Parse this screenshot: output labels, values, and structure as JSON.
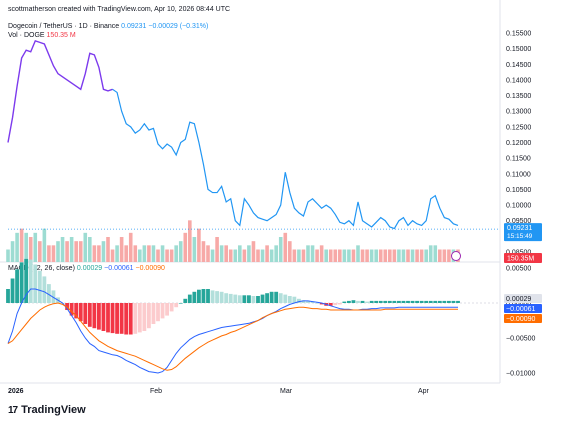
{
  "header": {
    "author_line": "scottmatherson created with TradingView.com, Apr 10, 2026 08:44 UTC"
  },
  "symbol": {
    "name": "Dogecoin / TetherUS · 1D · Binance",
    "price": "0.09231",
    "change": "−0.00029 (−0.31%)"
  },
  "volume": {
    "label": "Vol · DOGE",
    "value": "150.35 M"
  },
  "macd": {
    "label": "MACD (12, 26, close)",
    "hist": "0.00029",
    "macd": "−0.00061",
    "signal": "−0.00090"
  },
  "price_axis": {
    "ticks": [
      "0.15500",
      "0.15000",
      "0.14500",
      "0.14000",
      "0.13500",
      "0.13000",
      "0.12500",
      "0.12000",
      "0.11500",
      "0.11000",
      "0.10500",
      "0.10000",
      "0.09500",
      "0.09000",
      "0.08500"
    ],
    "current_price": "0.09231",
    "countdown": "15:15:49",
    "volume_tag": "150.35M"
  },
  "macd_axis": {
    "ticks": [
      "0.00500",
      "0.00000",
      "−0.00500",
      "−0.01000"
    ],
    "tags": [
      "0.00029",
      "−0.00061",
      "−0.00090"
    ]
  },
  "time_axis": {
    "labels": [
      "2026",
      "Feb",
      "Mar",
      "Apr"
    ]
  },
  "colors": {
    "line": "#2196f3",
    "line_early": "#7c3aed",
    "up": "#26a69a",
    "down": "#f23645",
    "macd": "#2962ff",
    "signal": "#ff6d00"
  },
  "brand": "TradingView",
  "chart_data": [
    {
      "type": "line",
      "title": "Dogecoin / TetherUS · 1D · Binance",
      "x": [
        "Jan 1",
        "Jan 2",
        "Jan 3",
        "Jan 4",
        "Jan 5",
        "Jan 6",
        "Jan 7",
        "Jan 8",
        "Jan 9",
        "Jan 10",
        "Jan 11",
        "Jan 12",
        "Jan 13",
        "Jan 14",
        "Jan 15",
        "Jan 16",
        "Jan 17",
        "Jan 18",
        "Jan 19",
        "Jan 20",
        "Jan 21",
        "Jan 22",
        "Jan 23",
        "Jan 24",
        "Jan 25",
        "Jan 26",
        "Jan 27",
        "Jan 28",
        "Jan 29",
        "Jan 30",
        "Jan 31",
        "Feb 1",
        "Feb 2",
        "Feb 3",
        "Feb 4",
        "Feb 5",
        "Feb 6",
        "Feb 7",
        "Feb 8",
        "Feb 9",
        "Feb 10",
        "Feb 11",
        "Feb 12",
        "Feb 13",
        "Feb 14",
        "Feb 15",
        "Feb 16",
        "Feb 17",
        "Feb 18",
        "Feb 19",
        "Feb 20",
        "Feb 21",
        "Feb 22",
        "Feb 23",
        "Feb 24",
        "Feb 25",
        "Feb 26",
        "Feb 27",
        "Feb 28",
        "Mar 1",
        "Mar 2",
        "Mar 3",
        "Mar 4",
        "Mar 5",
        "Mar 6",
        "Mar 7",
        "Mar 8",
        "Mar 9",
        "Mar 10",
        "Mar 11",
        "Mar 12",
        "Mar 13",
        "Mar 14",
        "Mar 15",
        "Mar 16",
        "Mar 17",
        "Mar 18",
        "Mar 19",
        "Mar 20",
        "Mar 21",
        "Mar 22",
        "Mar 23",
        "Mar 24",
        "Mar 25",
        "Mar 26",
        "Mar 27",
        "Mar 28",
        "Mar 29",
        "Mar 30",
        "Mar 31",
        "Apr 1",
        "Apr 2",
        "Apr 3",
        "Apr 4",
        "Apr 5",
        "Apr 6",
        "Apr 7",
        "Apr 8",
        "Apr 9",
        "Apr 10"
      ],
      "values": [
        0.12,
        0.128,
        0.138,
        0.147,
        0.1495,
        0.149,
        0.1525,
        0.152,
        0.1515,
        0.148,
        0.1445,
        0.142,
        0.141,
        0.14,
        0.139,
        0.138,
        0.137,
        0.142,
        0.1485,
        0.148,
        0.144,
        0.137,
        0.1365,
        0.137,
        0.136,
        0.13,
        0.126,
        0.125,
        0.123,
        0.124,
        0.126,
        0.124,
        0.1245,
        0.1195,
        0.118,
        0.1195,
        0.1185,
        0.116,
        0.12,
        0.121,
        0.1265,
        0.126,
        0.12,
        0.113,
        0.105,
        0.104,
        0.104,
        0.106,
        0.101,
        0.102,
        0.095,
        0.0935,
        0.102,
        0.1,
        0.0975,
        0.096,
        0.0955,
        0.095,
        0.096,
        0.097,
        0.1,
        0.1105,
        0.104,
        0.099,
        0.0975,
        0.0965,
        0.101,
        0.102,
        0.1005,
        0.099,
        0.1,
        0.099,
        0.097,
        0.0945,
        0.094,
        0.095,
        0.0935,
        0.101,
        0.095,
        0.094,
        0.093,
        0.0945,
        0.096,
        0.095,
        0.093,
        0.0925,
        0.095,
        0.096,
        0.0935,
        0.095,
        0.094,
        0.0935,
        0.095,
        0.102,
        0.103,
        0.099,
        0.096,
        0.0955,
        0.094,
        0.0935
      ],
      "ylim": [
        0.083,
        0.158
      ]
    },
    {
      "type": "bar",
      "title": "Vol · DOGE",
      "values": [
        3,
        5,
        7,
        8,
        7,
        6,
        7,
        5,
        8,
        4,
        4,
        5,
        6,
        5,
        6,
        5,
        5,
        7,
        6,
        4,
        4,
        5,
        6,
        3,
        4,
        6,
        4,
        7,
        4,
        3,
        4,
        4,
        4,
        3,
        4,
        3,
        3,
        4,
        5,
        7,
        10,
        6,
        8,
        5,
        4,
        3,
        6,
        4,
        4,
        3,
        3,
        4,
        3,
        4,
        5,
        3,
        3,
        4,
        3,
        4,
        6,
        7,
        5,
        3,
        3,
        3,
        4,
        4,
        3,
        4,
        3,
        3,
        3,
        3,
        3,
        3,
        3,
        4,
        3,
        3,
        3,
        3,
        3,
        3,
        3,
        3,
        3,
        3,
        3,
        3,
        3,
        3,
        3,
        4,
        4,
        3,
        3,
        3,
        3,
        3
      ],
      "up": [
        1,
        1,
        1,
        0,
        1,
        0,
        1,
        0,
        1,
        0,
        0,
        1,
        1,
        0,
        1,
        0,
        0,
        1,
        1,
        0,
        0,
        1,
        0,
        0,
        1,
        0,
        0,
        0,
        0,
        1,
        1,
        0,
        1,
        0,
        1,
        0,
        0,
        1,
        1,
        0,
        0,
        1,
        0,
        0,
        0,
        1,
        0,
        1,
        0,
        0,
        1,
        1,
        0,
        1,
        0,
        0,
        1,
        0,
        1,
        1,
        1,
        0,
        0,
        0,
        1,
        0,
        1,
        1,
        0,
        0,
        1,
        0,
        0,
        0,
        1,
        1,
        0,
        1,
        0,
        0,
        1,
        1,
        0,
        0,
        0,
        0,
        1,
        1,
        0,
        1,
        0,
        0,
        1,
        1,
        1,
        0,
        0,
        0,
        1,
        0
      ]
    },
    {
      "type": "bar",
      "title": "MACD (12, 26, close)",
      "series": [
        {
          "name": "0.00029",
          "values": [
            0.002,
            0.0035,
            0.0048,
            0.0058,
            0.0063,
            0.0062,
            0.0055,
            0.0046,
            0.0038,
            0.0027,
            0.0018,
            0.0008,
            0.0,
            -0.001,
            -0.0018,
            -0.0022,
            -0.0026,
            -0.003,
            -0.0034,
            -0.0036,
            -0.0038,
            -0.004,
            -0.0042,
            -0.0043,
            -0.0044,
            -0.0044,
            -0.0045,
            -0.0045,
            -0.0044,
            -0.0042,
            -0.004,
            -0.0036,
            -0.003,
            -0.0026,
            -0.0022,
            -0.0018,
            -0.0012,
            -0.0006,
            0.0,
            0.0006,
            0.0012,
            0.0016,
            0.0019,
            0.002,
            0.002,
            0.0018,
            0.0017,
            0.0016,
            0.0014,
            0.0013,
            0.0012,
            0.0011,
            0.0011,
            0.0011,
            0.001,
            0.001,
            0.0012,
            0.0014,
            0.0016,
            0.0016,
            0.0014,
            0.0012,
            0.001,
            0.0009,
            0.0006,
            0.0004,
            0.0003,
            0.0002,
            0.0,
            -0.0002,
            -0.0004,
            -0.0004,
            -0.0003,
            -0.0002,
            0.0002,
            0.0003,
            0.0004,
            0.0003,
            0.0003,
            0.0002,
            0.0003,
            0.0003,
            0.0003,
            0.0003,
            0.0003,
            0.0003,
            0.0003,
            0.0003,
            0.0003,
            0.0003,
            0.0003,
            0.0003,
            0.0003,
            0.0003,
            0.0003,
            0.0003,
            0.0003,
            0.0003,
            0.0003,
            0.0003
          ]
        },
        {
          "name": "−0.00061",
          "values": [
            -0.0058,
            -0.004,
            -0.0015,
            0.0,
            0.0012,
            0.002,
            0.002,
            0.0018,
            0.0016,
            0.0012,
            0.0008,
            0.0004,
            0.0,
            -0.0008,
            -0.0018,
            -0.0028,
            -0.004,
            -0.005,
            -0.0058,
            -0.0062,
            -0.0068,
            -0.007,
            -0.0072,
            -0.0074,
            -0.0075,
            -0.0078,
            -0.0082,
            -0.0085,
            -0.0088,
            -0.0092,
            -0.0095,
            -0.0098,
            -0.0099,
            -0.01,
            -0.0098,
            -0.0092,
            -0.0082,
            -0.0072,
            -0.0064,
            -0.0058,
            -0.0052,
            -0.0048,
            -0.0045,
            -0.0043,
            -0.0041,
            -0.0039,
            -0.0037,
            -0.0035,
            -0.0034,
            -0.0033,
            -0.0032,
            -0.0031,
            -0.003,
            -0.0029,
            -0.0027,
            -0.0025,
            -0.0022,
            -0.0018,
            -0.0015,
            -0.0012,
            -0.0008,
            -0.0005,
            -0.0002,
            0.0,
            0.0002,
            0.0003,
            0.0003,
            0.0002,
            0.0001,
            0.0,
            -0.0002,
            -0.0004,
            -0.0006,
            -0.0008,
            -0.0009,
            -0.0009,
            -0.001,
            -0.001,
            -0.0009,
            -0.0009,
            -0.0008,
            -0.0008,
            -0.0007,
            -0.0007,
            -0.0007,
            -0.0007,
            -0.0006,
            -0.0006,
            -0.0006,
            -0.0006,
            -0.0006,
            -0.0006,
            -0.0006,
            -0.0006,
            -0.0006,
            -0.0006,
            -0.0006,
            -0.0006,
            -0.0006,
            -0.0006
          ]
        },
        {
          "name": "−0.00090",
          "values": [
            -0.0058,
            -0.0054,
            -0.0046,
            -0.0038,
            -0.003,
            -0.0022,
            -0.0016,
            -0.001,
            -0.0006,
            -0.0003,
            -0.0001,
            0.0,
            -0.0002,
            -0.0006,
            -0.0012,
            -0.0018,
            -0.0026,
            -0.0034,
            -0.0042,
            -0.0048,
            -0.0054,
            -0.0058,
            -0.0062,
            -0.0065,
            -0.0068,
            -0.007,
            -0.0072,
            -0.0074,
            -0.0076,
            -0.0079,
            -0.0082,
            -0.0085,
            -0.0088,
            -0.0091,
            -0.0094,
            -0.0096,
            -0.0095,
            -0.0091,
            -0.0085,
            -0.0079,
            -0.0074,
            -0.0069,
            -0.0064,
            -0.006,
            -0.0056,
            -0.0053,
            -0.005,
            -0.0047,
            -0.0045,
            -0.0042,
            -0.004,
            -0.0037,
            -0.0034,
            -0.0031,
            -0.0028,
            -0.0025,
            -0.0021,
            -0.0018,
            -0.0015,
            -0.0013,
            -0.0011,
            -0.0009,
            -0.0008,
            -0.0007,
            -0.0006,
            -0.0006,
            -0.0007,
            -0.0008,
            -0.0008,
            -0.0009,
            -0.0009,
            -0.001,
            -0.001,
            -0.001,
            -0.001,
            -0.001,
            -0.001,
            -0.001,
            -0.001,
            -0.001,
            -0.001,
            -0.001,
            -0.001,
            -0.0009,
            -0.0009,
            -0.0009,
            -0.0009,
            -0.0009,
            -0.0009,
            -0.0009,
            -0.0009,
            -0.0009,
            -0.0009,
            -0.0009,
            -0.0009,
            -0.0009,
            -0.0009,
            -0.0009,
            -0.0009,
            -0.0009
          ]
        }
      ],
      "ylim": [
        -0.011,
        0.007
      ]
    }
  ]
}
